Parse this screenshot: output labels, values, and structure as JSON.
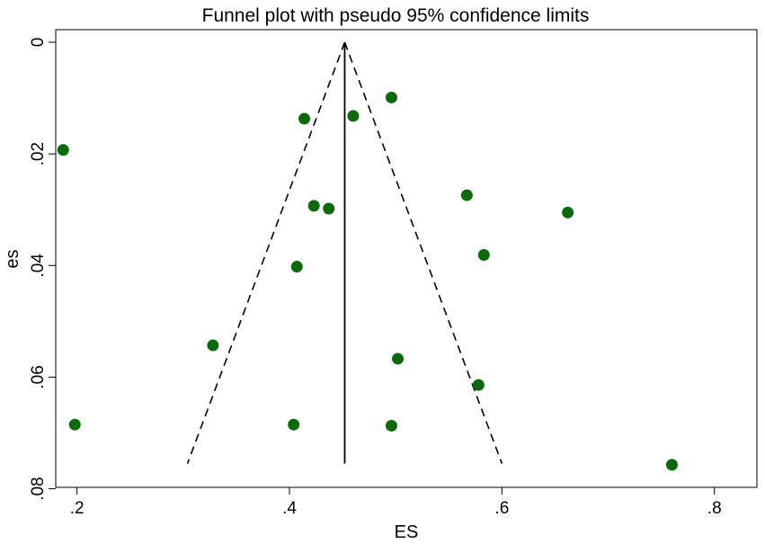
{
  "chart_data": {
    "type": "scatter",
    "title": "Funnel plot with pseudo 95% confidence limits",
    "xlabel": "ES",
    "ylabel": "es",
    "xlim": [
      0.18,
      0.84
    ],
    "ylim": [
      0,
      0.082
    ],
    "y_reversed": true,
    "x_ticks": [
      {
        "value": 0.2,
        "label": ".2"
      },
      {
        "value": 0.4,
        "label": ".4"
      },
      {
        "value": 0.6,
        "label": ".6"
      },
      {
        "value": 0.8,
        "label": ".8"
      }
    ],
    "y_ticks": [
      {
        "value": 0,
        "label": "0"
      },
      {
        "value": 0.02,
        "label": ".02"
      },
      {
        "value": 0.04,
        "label": ".04"
      },
      {
        "value": 0.06,
        "label": ".06"
      },
      {
        "value": 0.08,
        "label": ".08"
      }
    ],
    "grid": false,
    "legend": "none",
    "point_color": "#0b6b0b",
    "line_color": "#000000",
    "pooled_estimate": 0.452,
    "funnel_apex": {
      "x": 0.452,
      "y": 0
    },
    "funnel_base": {
      "y": 0.0755,
      "left_x": 0.304,
      "right_x": 0.6
    },
    "points": [
      {
        "x": 0.187,
        "y": 0.0193
      },
      {
        "x": 0.198,
        "y": 0.0685
      },
      {
        "x": 0.328,
        "y": 0.0543
      },
      {
        "x": 0.404,
        "y": 0.0685
      },
      {
        "x": 0.407,
        "y": 0.0402
      },
      {
        "x": 0.414,
        "y": 0.0137
      },
      {
        "x": 0.423,
        "y": 0.0293
      },
      {
        "x": 0.437,
        "y": 0.0298
      },
      {
        "x": 0.46,
        "y": 0.0132
      },
      {
        "x": 0.496,
        "y": 0.0099
      },
      {
        "x": 0.496,
        "y": 0.0687
      },
      {
        "x": 0.502,
        "y": 0.0567
      },
      {
        "x": 0.567,
        "y": 0.0274
      },
      {
        "x": 0.578,
        "y": 0.0614
      },
      {
        "x": 0.583,
        "y": 0.0381
      },
      {
        "x": 0.662,
        "y": 0.0305
      },
      {
        "x": 0.76,
        "y": 0.0757
      }
    ]
  }
}
